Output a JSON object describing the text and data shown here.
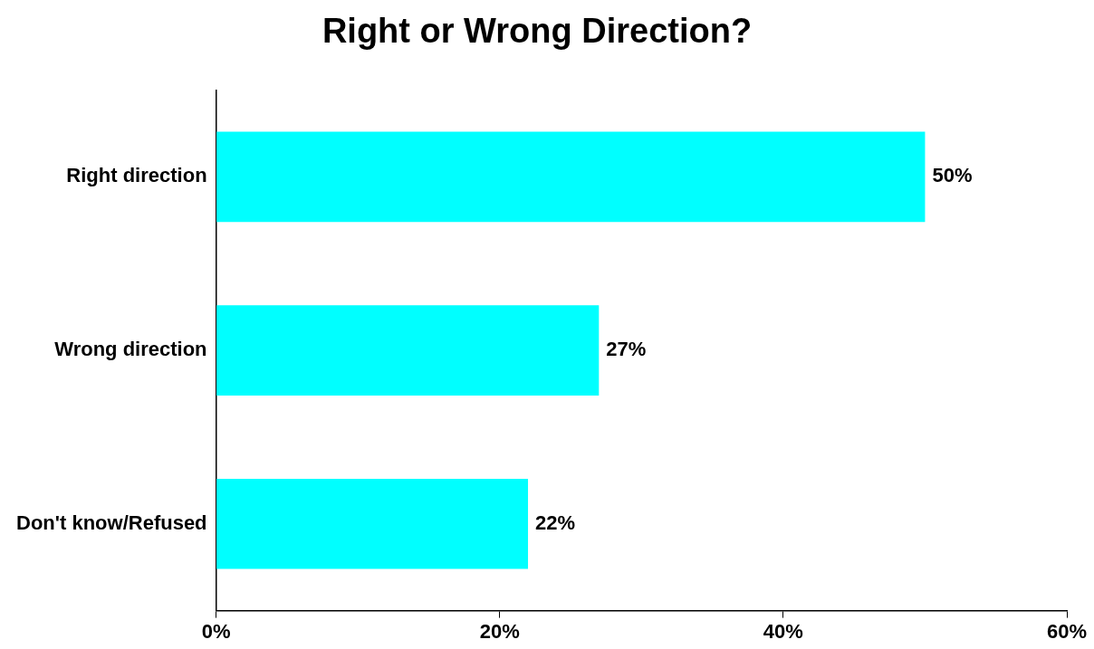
{
  "chart_data": {
    "type": "bar",
    "orientation": "horizontal",
    "title": "Right or Wrong Direction?",
    "categories": [
      "Right direction",
      "Wrong direction",
      "Don't know/Refused"
    ],
    "values": [
      50,
      27,
      22
    ],
    "color": "#00ffff",
    "value_labels": [
      "50%",
      "27%",
      "22%"
    ],
    "xlim": [
      0,
      60
    ],
    "xticks": [
      {
        "value": 0,
        "label": "0%"
      },
      {
        "value": 20,
        "label": "20%"
      },
      {
        "value": 40,
        "label": "40%"
      },
      {
        "value": 60,
        "label": "60%"
      }
    ],
    "grid": false,
    "legend": false
  }
}
